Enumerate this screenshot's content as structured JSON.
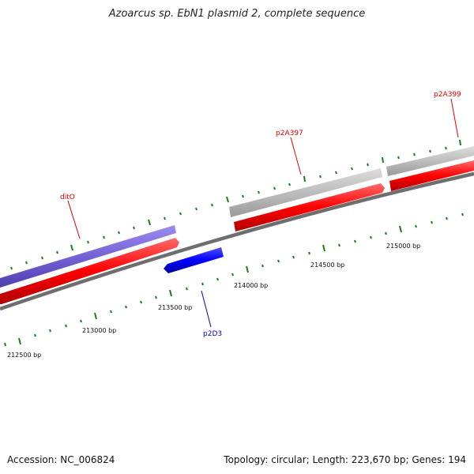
{
  "title": "Azoarcus sp. EbN1 plasmid 2, complete sequence",
  "footer": {
    "accession": "Accession: NC_006824",
    "summary": "Topology: circular; Length: 223,670 bp; Genes: 194"
  },
  "colors": {
    "forward_gene": "#ff0000",
    "reverse_gene": "#0000ff",
    "forward_cds_band": "#7b68d8",
    "gray_band": "#c0c0c0",
    "backbone": "#808080",
    "ticks": "#1e7a1e",
    "label_red": "#e00000",
    "label_blue": "#0000cc"
  },
  "gene_labels": [
    {
      "name": "ditO",
      "color": "red"
    },
    {
      "name": "p2A397",
      "color": "red"
    },
    {
      "name": "p2A399",
      "color": "red"
    },
    {
      "name": "p2D3",
      "color": "blue"
    }
  ],
  "ruler_labels": [
    "212500 bp",
    "213000 bp",
    "213500 bp",
    "214000 bp",
    "214500 bp",
    "215000 bp"
  ]
}
